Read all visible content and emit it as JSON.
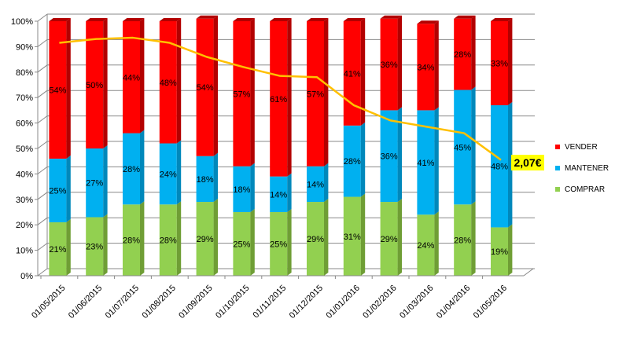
{
  "chart_data": {
    "type": "bar",
    "stacked": true,
    "percent_stacked": true,
    "categories": [
      "01/05/2015",
      "01/06/2015",
      "01/07/2015",
      "01/08/2015",
      "01/09/2015",
      "01/10/2015",
      "01/11/2015",
      "01/12/2015",
      "01/01/2016",
      "01/02/2016",
      "01/03/2016",
      "01/04/2016",
      "01/05/2016"
    ],
    "series": [
      {
        "name": "COMPRAR",
        "color": "#92d050",
        "side_color": "#6f9e35",
        "values": [
          21,
          23,
          28,
          28,
          29,
          25,
          25,
          29,
          31,
          29,
          24,
          28,
          19
        ]
      },
      {
        "name": "MANTENER",
        "color": "#00b0f0",
        "side_color": "#0088bb",
        "values": [
          25,
          27,
          28,
          24,
          18,
          18,
          14,
          14,
          28,
          36,
          41,
          45,
          48
        ]
      },
      {
        "name": "VENDER",
        "color": "#ff0000",
        "side_color": "#b30000",
        "values": [
          54,
          50,
          44,
          48,
          54,
          57,
          61,
          57,
          41,
          36,
          34,
          28,
          33
        ]
      }
    ],
    "line": {
      "color": "#ffc000",
      "values": [
        91.5,
        93.0,
        93.5,
        91.5,
        86.0,
        82.0,
        78.5,
        78.0,
        67.0,
        61.0,
        58.5,
        56.0,
        45.5
      ]
    },
    "yticks": [
      "0%",
      "10%",
      "20%",
      "30%",
      "40%",
      "50%",
      "60%",
      "70%",
      "80%",
      "90%",
      "100%"
    ],
    "ylim": [
      0,
      100
    ],
    "legend_position": "right",
    "grid": true,
    "callout": "2,07€"
  }
}
